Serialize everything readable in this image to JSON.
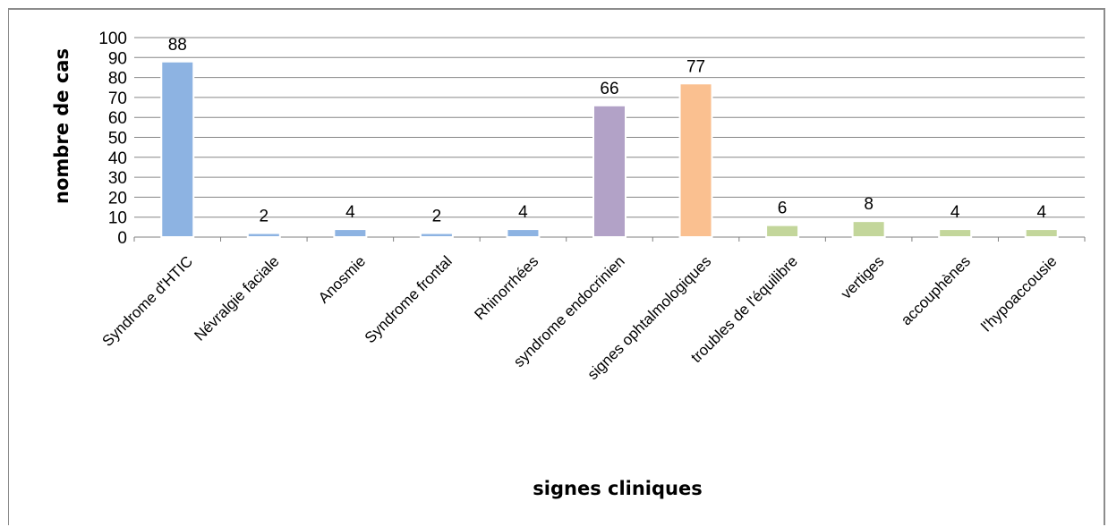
{
  "chart_data": {
    "type": "bar",
    "title": "",
    "xlabel": "signes cliniques",
    "ylabel": "nombre de cas",
    "ylim": [
      0,
      100
    ],
    "yticks": [
      "0",
      "10",
      "20",
      "30",
      "40",
      "50",
      "60",
      "70",
      "80",
      "90",
      "100"
    ],
    "grid": true,
    "categories": [
      "Syndrome d'HTIC",
      "Névralgie faciale",
      "Anosmie",
      "Syndrome frontal",
      "Rhinorrhées",
      "syndrome endocrinien",
      "signes ophtalmologiques",
      "troubles de l'équilibre",
      "vertiges",
      "accouphènes",
      "l'hypoaccousie"
    ],
    "values": [
      88,
      2,
      4,
      2,
      4,
      66,
      77,
      6,
      8,
      4,
      4
    ],
    "data_labels": [
      "88",
      "2",
      "4",
      "2",
      "4",
      "66",
      "77",
      "6",
      "8",
      "4",
      "4"
    ],
    "colors": [
      "#8db3e2",
      "#8db3e2",
      "#8db3e2",
      "#8db3e2",
      "#8db3e2",
      "#b2a2c7",
      "#fac090",
      "#c3d69b",
      "#c3d69b",
      "#c3d69b",
      "#c3d69b"
    ]
  }
}
